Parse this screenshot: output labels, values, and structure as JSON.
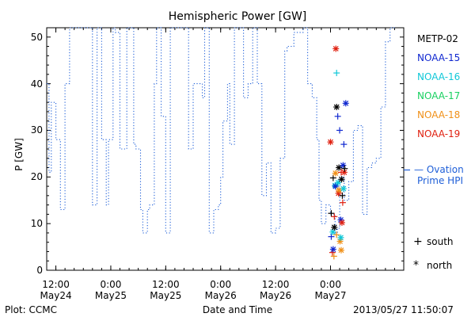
{
  "chart_data": {
    "type": "scatter",
    "title": "Hemispheric Power [GW]",
    "ylabel": "P [GW]",
    "xlabel": "Date and Time",
    "ylim": [
      0,
      52
    ],
    "xlim": [
      "2013-05-24 10:00",
      "2013-05-27 16:00"
    ],
    "yticks": [
      0,
      10,
      20,
      30,
      40,
      50
    ],
    "xticks": [
      {
        "time": "2013-05-24 12:00",
        "top": "12:00",
        "bottom": "May24"
      },
      {
        "time": "2013-05-25 00:00",
        "top": "0:00",
        "bottom": "May25"
      },
      {
        "time": "2013-05-25 12:00",
        "top": "12:00",
        "bottom": "May25"
      },
      {
        "time": "2013-05-26 00:00",
        "top": "0:00",
        "bottom": "May26"
      },
      {
        "time": "2013-05-26 12:00",
        "top": "12:00",
        "bottom": "May26"
      },
      {
        "time": "2013-05-27 00:00",
        "top": "0:00",
        "bottom": "May27"
      }
    ],
    "ovation_label": [
      "— Ovation",
      "Prime HPI"
    ],
    "ovation_color": "#1f5fd8",
    "ovation_current": 21.5,
    "ovation_series": {
      "name": "Ovation Prime HPI",
      "points": [
        [
          "2013-05-24 10:00",
          40
        ],
        [
          "2013-05-24 10:30",
          40
        ],
        [
          "2013-05-24 10:30",
          21
        ],
        [
          "2013-05-24 11:00",
          21
        ],
        [
          "2013-05-24 11:00",
          36
        ],
        [
          "2013-05-24 12:00",
          36
        ],
        [
          "2013-05-24 12:00",
          28
        ],
        [
          "2013-05-24 13:00",
          28
        ],
        [
          "2013-05-24 13:00",
          13
        ],
        [
          "2013-05-24 14:00",
          13
        ],
        [
          "2013-05-24 14:00",
          40
        ],
        [
          "2013-05-24 15:00",
          40
        ],
        [
          "2013-05-24 15:00",
          52
        ],
        [
          "2013-05-24 20:00",
          52
        ],
        [
          "2013-05-24 20:00",
          14
        ],
        [
          "2013-05-24 21:00",
          14
        ],
        [
          "2013-05-24 21:00",
          52
        ],
        [
          "2013-05-24 22:00",
          52
        ],
        [
          "2013-05-24 22:00",
          28
        ],
        [
          "2013-05-24 23:00",
          28
        ],
        [
          "2013-05-24 23:00",
          14
        ],
        [
          "2013-05-24 23:30",
          14
        ],
        [
          "2013-05-24 23:30",
          28
        ],
        [
          "2013-05-25 00:30",
          28
        ],
        [
          "2013-05-25 00:30",
          52
        ],
        [
          "2013-05-25 01:00",
          52
        ],
        [
          "2013-05-25 01:00",
          51
        ],
        [
          "2013-05-25 02:00",
          51
        ],
        [
          "2013-05-25 02:00",
          26
        ],
        [
          "2013-05-25 03:30",
          26
        ],
        [
          "2013-05-25 03:30",
          52
        ],
        [
          "2013-05-25 05:00",
          52
        ],
        [
          "2013-05-25 05:00",
          27
        ],
        [
          "2013-05-25 05:30",
          27
        ],
        [
          "2013-05-25 05:30",
          26
        ],
        [
          "2013-05-25 06:30",
          26
        ],
        [
          "2013-05-25 06:30",
          13
        ],
        [
          "2013-05-25 07:00",
          13
        ],
        [
          "2013-05-25 07:00",
          8
        ],
        [
          "2013-05-25 08:00",
          8
        ],
        [
          "2013-05-25 08:00",
          13
        ],
        [
          "2013-05-25 08:30",
          13
        ],
        [
          "2013-05-25 08:30",
          14
        ],
        [
          "2013-05-25 09:30",
          14
        ],
        [
          "2013-05-25 09:30",
          40
        ],
        [
          "2013-05-25 10:00",
          40
        ],
        [
          "2013-05-25 10:00",
          52
        ],
        [
          "2013-05-25 11:00",
          52
        ],
        [
          "2013-05-25 11:00",
          33
        ],
        [
          "2013-05-25 12:00",
          33
        ],
        [
          "2013-05-25 12:00",
          8
        ],
        [
          "2013-05-25 13:00",
          8
        ],
        [
          "2013-05-25 13:00",
          52
        ],
        [
          "2013-05-25 17:00",
          52
        ],
        [
          "2013-05-25 17:00",
          26
        ],
        [
          "2013-05-25 18:00",
          26
        ],
        [
          "2013-05-25 18:00",
          40
        ],
        [
          "2013-05-25 20:00",
          40
        ],
        [
          "2013-05-25 20:00",
          37
        ],
        [
          "2013-05-25 20:30",
          37
        ],
        [
          "2013-05-25 20:30",
          52
        ],
        [
          "2013-05-25 21:30",
          52
        ],
        [
          "2013-05-25 21:30",
          8
        ],
        [
          "2013-05-25 22:30",
          8
        ],
        [
          "2013-05-25 22:30",
          13
        ],
        [
          "2013-05-25 23:30",
          13
        ],
        [
          "2013-05-25 23:30",
          14
        ],
        [
          "2013-05-26 00:00",
          14
        ],
        [
          "2013-05-26 00:00",
          20
        ],
        [
          "2013-05-26 00:30",
          20
        ],
        [
          "2013-05-26 00:30",
          32
        ],
        [
          "2013-05-26 01:30",
          32
        ],
        [
          "2013-05-26 01:30",
          40
        ],
        [
          "2013-05-26 02:00",
          40
        ],
        [
          "2013-05-26 02:00",
          27
        ],
        [
          "2013-05-26 03:00",
          27
        ],
        [
          "2013-05-26 03:00",
          52
        ],
        [
          "2013-05-26 05:00",
          52
        ],
        [
          "2013-05-26 05:00",
          37
        ],
        [
          "2013-05-26 06:00",
          37
        ],
        [
          "2013-05-26 06:00",
          40
        ],
        [
          "2013-05-26 07:00",
          40
        ],
        [
          "2013-05-26 07:00",
          52
        ],
        [
          "2013-05-26 08:00",
          52
        ],
        [
          "2013-05-26 08:00",
          40
        ],
        [
          "2013-05-26 09:00",
          40
        ],
        [
          "2013-05-26 09:00",
          16
        ],
        [
          "2013-05-26 10:00",
          16
        ],
        [
          "2013-05-26 10:00",
          23
        ],
        [
          "2013-05-26 11:00",
          23
        ],
        [
          "2013-05-26 11:00",
          8
        ],
        [
          "2013-05-26 12:00",
          8
        ],
        [
          "2013-05-26 12:00",
          9
        ],
        [
          "2013-05-26 13:00",
          9
        ],
        [
          "2013-05-26 13:00",
          24
        ],
        [
          "2013-05-26 14:00",
          24
        ],
        [
          "2013-05-26 14:00",
          47
        ],
        [
          "2013-05-26 14:30",
          47
        ],
        [
          "2013-05-26 14:30",
          48
        ],
        [
          "2013-05-26 16:00",
          48
        ],
        [
          "2013-05-26 16:00",
          51
        ],
        [
          "2013-05-26 18:00",
          51
        ],
        [
          "2013-05-26 18:00",
          52
        ],
        [
          "2013-05-26 19:00",
          52
        ],
        [
          "2013-05-26 19:00",
          40
        ],
        [
          "2013-05-26 20:00",
          40
        ],
        [
          "2013-05-26 20:00",
          37
        ],
        [
          "2013-05-26 21:00",
          37
        ],
        [
          "2013-05-26 21:00",
          28
        ],
        [
          "2013-05-26 21:30",
          28
        ],
        [
          "2013-05-26 21:30",
          15
        ],
        [
          "2013-05-26 22:00",
          15
        ],
        [
          "2013-05-26 22:00",
          10
        ],
        [
          "2013-05-26 23:00",
          10
        ],
        [
          "2013-05-26 23:00",
          14
        ],
        [
          "2013-05-27 00:00",
          14
        ],
        [
          "2013-05-27 00:00",
          12
        ],
        [
          "2013-05-27 01:00",
          12
        ],
        [
          "2013-05-27 01:00",
          8
        ],
        [
          "2013-05-27 01:30",
          8
        ],
        [
          "2013-05-27 01:30",
          9
        ],
        [
          "2013-05-27 02:00",
          9
        ],
        [
          "2013-05-27 02:00",
          20
        ],
        [
          "2013-05-27 03:00",
          20
        ],
        [
          "2013-05-27 03:00",
          15
        ],
        [
          "2013-05-27 04:00",
          15
        ],
        [
          "2013-05-27 04:00",
          19
        ],
        [
          "2013-05-27 05:00",
          19
        ],
        [
          "2013-05-27 05:00",
          30
        ],
        [
          "2013-05-27 06:00",
          30
        ],
        [
          "2013-05-27 06:00",
          31
        ],
        [
          "2013-05-27 07:00",
          31
        ],
        [
          "2013-05-27 07:00",
          12
        ],
        [
          "2013-05-27 08:00",
          12
        ],
        [
          "2013-05-27 08:00",
          22
        ],
        [
          "2013-05-27 09:00",
          22
        ],
        [
          "2013-05-27 09:00",
          23
        ],
        [
          "2013-05-27 10:00",
          23
        ],
        [
          "2013-05-27 10:00",
          24
        ],
        [
          "2013-05-27 11:00",
          24
        ],
        [
          "2013-05-27 11:00",
          35
        ],
        [
          "2013-05-27 12:00",
          35
        ],
        [
          "2013-05-27 12:00",
          49
        ],
        [
          "2013-05-27 13:00",
          49
        ],
        [
          "2013-05-27 13:00",
          52
        ],
        [
          "2013-05-27 14:00",
          52
        ]
      ]
    },
    "satellites": [
      {
        "name": "METP-02",
        "color": "#000000"
      },
      {
        "name": "NOAA-15",
        "color": "#1028d0"
      },
      {
        "name": "NOAA-16",
        "color": "#10c8d8"
      },
      {
        "name": "NOAA-17",
        "color": "#18d060"
      },
      {
        "name": "NOAA-18",
        "color": "#f09018"
      },
      {
        "name": "NOAA-19",
        "color": "#e02010"
      }
    ],
    "marker_legend": [
      {
        "symbol": "+",
        "label": "south"
      },
      {
        "symbol": "*",
        "label": "north"
      }
    ],
    "measurements": [
      {
        "time": "2013-05-27 00:00",
        "value": 27.5,
        "sat": "NOAA-19",
        "hemi": "north"
      },
      {
        "time": "2013-05-27 00:10",
        "value": 12.2,
        "sat": "METP-02",
        "hemi": "south"
      },
      {
        "time": "2013-05-27 00:10",
        "value": 7.2,
        "sat": "NOAA-15",
        "hemi": "south"
      },
      {
        "time": "2013-05-27 00:25",
        "value": 3.8,
        "sat": "NOAA-19",
        "hemi": "south"
      },
      {
        "time": "2013-05-27 00:30",
        "value": 8.2,
        "sat": "NOAA-16",
        "hemi": "north"
      },
      {
        "time": "2013-05-27 00:35",
        "value": 19.8,
        "sat": "METP-02",
        "hemi": "south"
      },
      {
        "time": "2013-05-27 00:35",
        "value": 4.5,
        "sat": "NOAA-15",
        "hemi": "north"
      },
      {
        "time": "2013-05-27 00:45",
        "value": 3.0,
        "sat": "NOAA-18",
        "hemi": "south"
      },
      {
        "time": "2013-05-27 00:50",
        "value": 11.5,
        "sat": "NOAA-19",
        "hemi": "south"
      },
      {
        "time": "2013-05-27 00:50",
        "value": 9.2,
        "sat": "METP-02",
        "hemi": "north"
      },
      {
        "time": "2013-05-27 01:00",
        "value": 18.2,
        "sat": "NOAA-16",
        "hemi": "north"
      },
      {
        "time": "2013-05-27 01:05",
        "value": 18.0,
        "sat": "NOAA-15",
        "hemi": "north"
      },
      {
        "time": "2013-05-27 01:05",
        "value": 20.8,
        "sat": "NOAA-18",
        "hemi": "north"
      },
      {
        "time": "2013-05-27 01:10",
        "value": 47.5,
        "sat": "NOAA-19",
        "hemi": "north"
      },
      {
        "time": "2013-05-27 01:20",
        "value": 42.3,
        "sat": "NOAA-16",
        "hemi": "south"
      },
      {
        "time": "2013-05-27 01:20",
        "value": 35.0,
        "sat": "METP-02",
        "hemi": "north"
      },
      {
        "time": "2013-05-27 01:20",
        "value": 7.6,
        "sat": "NOAA-18",
        "hemi": "south"
      },
      {
        "time": "2013-05-27 01:35",
        "value": 33.0,
        "sat": "NOAA-15",
        "hemi": "south"
      },
      {
        "time": "2013-05-27 01:40",
        "value": 18.8,
        "sat": "NOAA-16",
        "hemi": "north"
      },
      {
        "time": "2013-05-27 01:45",
        "value": 16.5,
        "sat": "NOAA-19",
        "hemi": "north"
      },
      {
        "time": "2013-05-27 01:50",
        "value": 17.2,
        "sat": "NOAA-18",
        "hemi": "north"
      },
      {
        "time": "2013-05-27 01:50",
        "value": 22.0,
        "sat": "METP-02",
        "hemi": "north"
      },
      {
        "time": "2013-05-27 02:00",
        "value": 30.0,
        "sat": "NOAA-15",
        "hemi": "south"
      },
      {
        "time": "2013-05-27 02:05",
        "value": 6.2,
        "sat": "NOAA-18",
        "hemi": "north"
      },
      {
        "time": "2013-05-27 02:15",
        "value": 10.8,
        "sat": "NOAA-15",
        "hemi": "north"
      },
      {
        "time": "2013-05-27 02:15",
        "value": 7.0,
        "sat": "NOAA-16",
        "hemi": "north"
      },
      {
        "time": "2013-05-27 02:20",
        "value": 4.3,
        "sat": "NOAA-18",
        "hemi": "north"
      },
      {
        "time": "2013-05-27 02:20",
        "value": 21.0,
        "sat": "NOAA-19",
        "hemi": "south"
      },
      {
        "time": "2013-05-27 02:25",
        "value": 19.5,
        "sat": "METP-02",
        "hemi": "north"
      },
      {
        "time": "2013-05-27 02:30",
        "value": 10.2,
        "sat": "NOAA-19",
        "hemi": "north"
      },
      {
        "time": "2013-05-27 02:35",
        "value": 16.0,
        "sat": "METP-02",
        "hemi": "south"
      },
      {
        "time": "2013-05-27 02:40",
        "value": 14.5,
        "sat": "NOAA-19",
        "hemi": "south"
      },
      {
        "time": "2013-05-27 02:45",
        "value": 22.5,
        "sat": "NOAA-15",
        "hemi": "north"
      },
      {
        "time": "2013-05-27 02:50",
        "value": 17.5,
        "sat": "NOAA-16",
        "hemi": "north"
      },
      {
        "time": "2013-05-27 02:55",
        "value": 27.0,
        "sat": "NOAA-15",
        "hemi": "south"
      },
      {
        "time": "2013-05-27 03:00",
        "value": 21.0,
        "sat": "NOAA-19",
        "hemi": "north"
      },
      {
        "time": "2013-05-27 03:05",
        "value": 21.8,
        "sat": "METP-02",
        "hemi": "south"
      },
      {
        "time": "2013-05-27 03:20",
        "value": 35.8,
        "sat": "NOAA-15",
        "hemi": "north"
      }
    ]
  },
  "footer": {
    "credit": "Plot: CCMC",
    "timestamp": "2013/05/27 11:50:07"
  }
}
